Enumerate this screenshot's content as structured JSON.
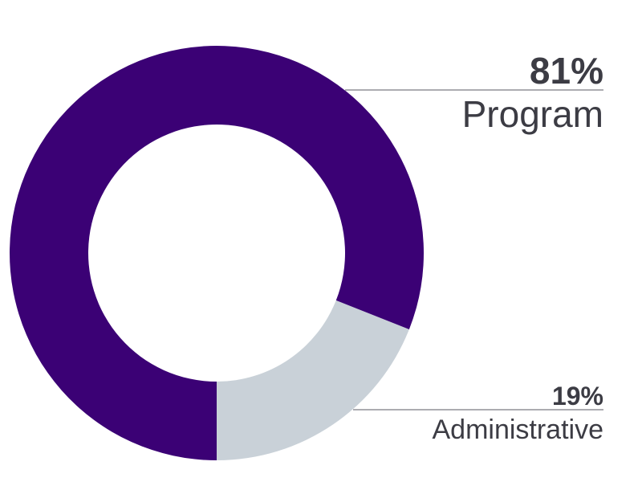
{
  "chart_data": {
    "type": "pie",
    "donut": true,
    "slices": [
      {
        "label": "Program",
        "value": 81,
        "value_label": "81%",
        "color": "#3b0175"
      },
      {
        "label": "Administrative",
        "value": 19,
        "value_label": "19%",
        "color": "#c9d1d8"
      }
    ],
    "title": "",
    "legend": "none"
  }
}
